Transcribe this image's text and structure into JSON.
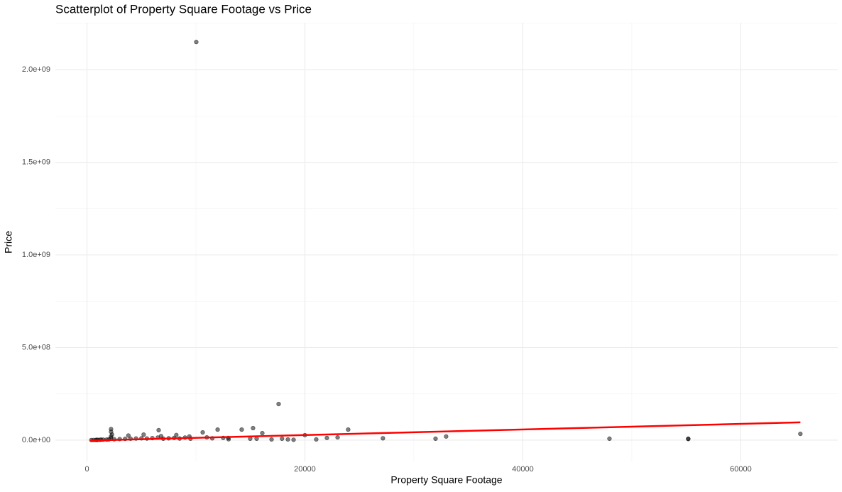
{
  "chart_data": {
    "type": "scatter",
    "title": "Scatterplot of Property Square Footage vs Price",
    "x_label": "Property Square Footage",
    "y_label": "Price",
    "xlim": [
      -2900,
      68900
    ],
    "ylim": [
      -115000000,
      2253000000
    ],
    "xticks": [
      0,
      20000,
      40000,
      60000
    ],
    "xminorticks": [
      10000,
      30000,
      50000
    ],
    "yticks": [
      {
        "value": 0,
        "label": "0.0e+00"
      },
      {
        "value": 500000000,
        "label": "5.0e+08"
      },
      {
        "value": 1000000000,
        "label": "1.0e+09"
      },
      {
        "value": 1500000000,
        "label": "1.5e+09"
      },
      {
        "value": 2000000000,
        "label": "2.0e+09"
      }
    ],
    "yminorticks": [
      250000000,
      750000000,
      1250000000,
      1750000000,
      2250000000
    ],
    "grid": true,
    "series": [
      {
        "color": "#000000",
        "x": [
          10030,
          17590,
          15240,
          14200,
          23970,
          65470,
          47950,
          55180,
          55180,
          27160,
          32960,
          31990,
          23000,
          22020,
          20000,
          21040,
          16090,
          16940,
          17900,
          18440,
          18960,
          14980,
          15570,
          12960,
          10620,
          11990,
          6580,
          2210,
          2210,
          2300,
          400,
          600,
          800,
          1000,
          1200,
          1500,
          1800,
          2000,
          2500,
          3000,
          3500,
          4000,
          4500,
          5000,
          5500,
          6000,
          6500,
          7000,
          7500,
          8000,
          8500,
          9000,
          9500,
          11000,
          11500,
          12500,
          13000,
          2200,
          2200,
          3800,
          5200,
          6800,
          8200,
          9400,
          1300,
          900
        ],
        "values": [
          2149000000,
          195000000,
          65000000,
          57000000,
          57000000,
          34000000,
          8000000,
          8000000,
          6000000,
          10000000,
          20000000,
          8000000,
          15000000,
          12000000,
          27000000,
          4000000,
          38000000,
          4000000,
          8000000,
          4000000,
          2000000,
          8000000,
          8000000,
          12000000,
          42000000,
          57000000,
          54000000,
          60000000,
          45000000,
          30000000,
          500000,
          800000,
          1000000,
          1500000,
          2000000,
          2500000,
          3000000,
          4000000,
          5000000,
          6000000,
          7000000,
          8000000,
          9000000,
          10000000,
          9000000,
          11000000,
          14000000,
          8000000,
          10000000,
          12000000,
          9000000,
          14000000,
          8000000,
          15000000,
          10000000,
          12000000,
          5000000,
          20000000,
          10000000,
          25000000,
          30000000,
          22000000,
          28000000,
          20000000,
          3000000,
          2000000
        ]
      }
    ],
    "trend": {
      "color": "#ff0000",
      "x": [
        300,
        65470
      ],
      "values": [
        -2000000,
        96000000
      ]
    }
  }
}
